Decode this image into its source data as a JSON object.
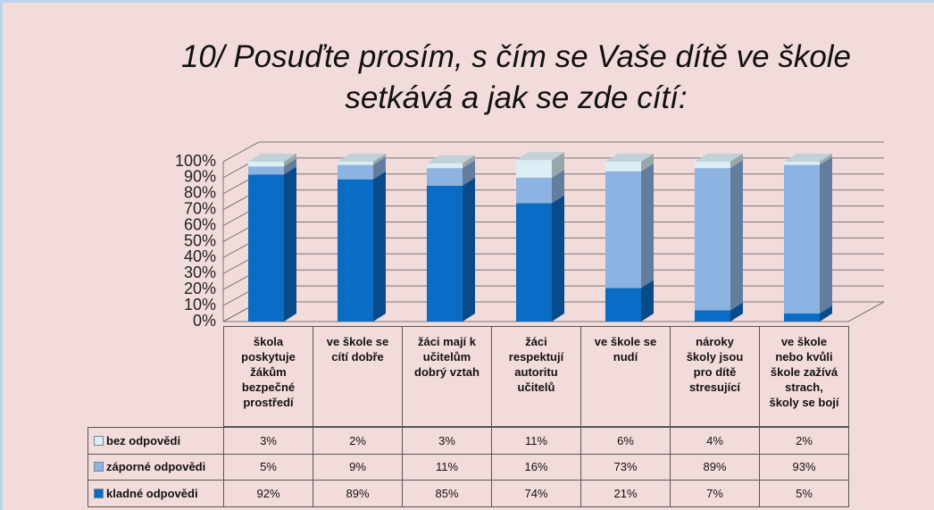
{
  "chart_data": {
    "type": "bar",
    "stacked": true,
    "title": "10/ Posuďte prosím, s čím se Vaše dítě ve škole setkává a jak se zde cítí:",
    "categories": [
      "škola poskytuje žákům bezpečné prostředí",
      "ve škole se cítí dobře",
      "žáci mají k učitelům dobrý vztah",
      "žáci respektují autoritu učitelů",
      "ve škole se nudí",
      "nároky školy jsou pro dítě stresující",
      "ve škole nebo kvůli škole zažívá strach, školy se bojí"
    ],
    "series": [
      {
        "name": "bez odpovědi",
        "color": "#dbeef4",
        "values": [
          3,
          2,
          3,
          11,
          6,
          4,
          2
        ],
        "value_labels": [
          "3%",
          "2%",
          "3%",
          "11%",
          "6%",
          "4%",
          "2%"
        ]
      },
      {
        "name": "záporné odpovědi",
        "color": "#8db3e2",
        "values": [
          5,
          9,
          11,
          16,
          73,
          89,
          93
        ],
        "value_labels": [
          "5%",
          "9%",
          "11%",
          "16%",
          "73%",
          "89%",
          "93%"
        ]
      },
      {
        "name": "kladné odpovědi",
        "color": "#0a6cc4",
        "values": [
          92,
          89,
          85,
          74,
          21,
          7,
          5
        ],
        "value_labels": [
          "92%",
          "89%",
          "85%",
          "74%",
          "21%",
          "7%",
          "5%"
        ]
      }
    ],
    "ylim": [
      0,
      100
    ],
    "yticks": [
      {
        "value": 0,
        "label": "0%"
      },
      {
        "value": 10,
        "label": "10%"
      },
      {
        "value": 20,
        "label": "20%"
      },
      {
        "value": 30,
        "label": "30%"
      },
      {
        "value": 40,
        "label": "40%"
      },
      {
        "value": 50,
        "label": "50%"
      },
      {
        "value": 60,
        "label": "60%"
      },
      {
        "value": 70,
        "label": "70%"
      },
      {
        "value": 80,
        "label": "80%"
      },
      {
        "value": 90,
        "label": "90%"
      },
      {
        "value": 100,
        "label": "100%"
      }
    ],
    "grid": true
  }
}
